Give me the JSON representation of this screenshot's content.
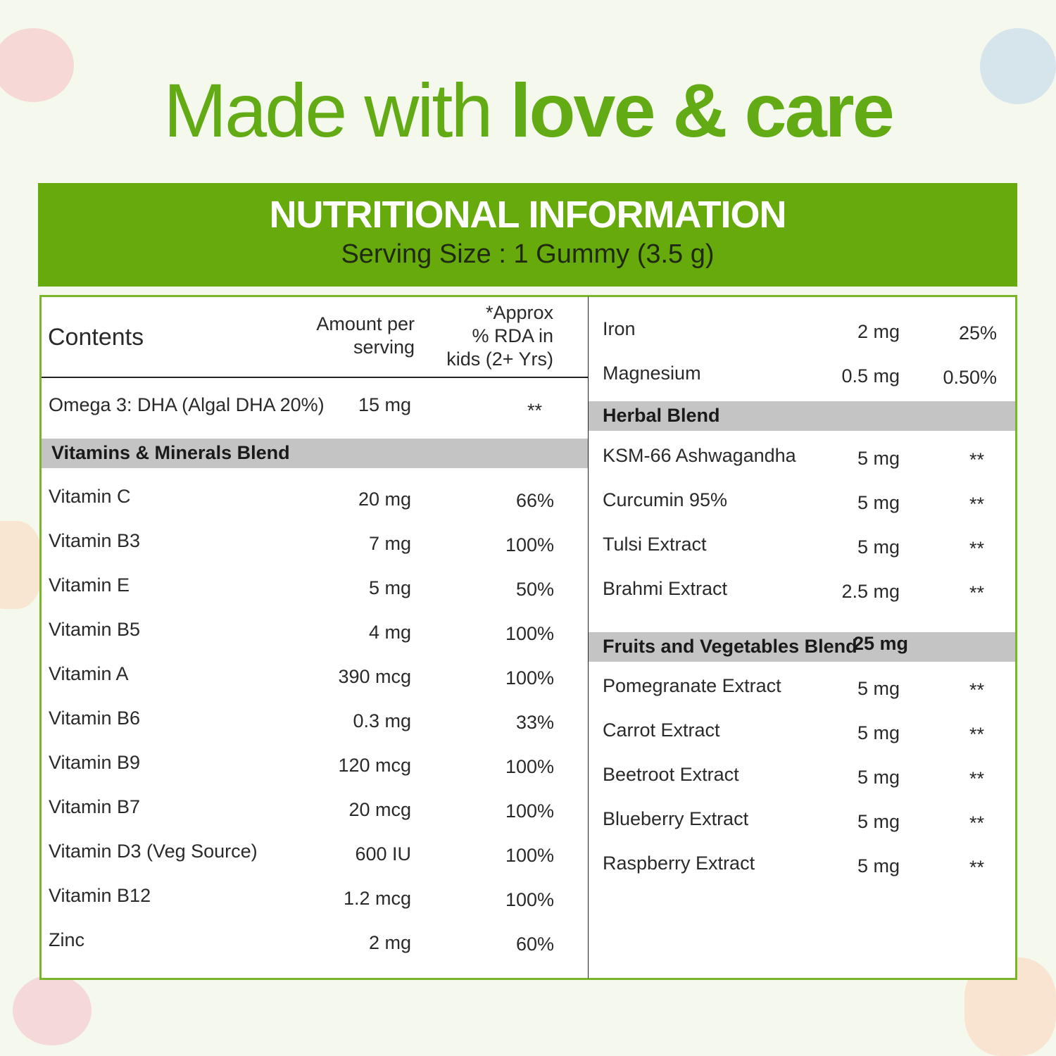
{
  "headline": {
    "light": "Made with ",
    "bold": "love & care"
  },
  "banner": {
    "title": "NUTRITIONAL INFORMATION",
    "subtitle": "Serving Size : 1 Gummy (3.5 g)"
  },
  "headers": {
    "contents": "Contents",
    "amount_line1": "Amount per",
    "amount_line2": "serving",
    "rda_line1": "*Approx",
    "rda_line2": "% RDA in",
    "rda_line3": "kids (2+ Yrs)"
  },
  "left_top": {
    "name": "Omega 3: DHA (Algal DHA 20%)",
    "amount": "15 mg",
    "rda": "**"
  },
  "vitamins_blend": {
    "label": "Vitamins & Minerals Blend",
    "rows": [
      {
        "name": "Vitamin C",
        "amount": "20 mg",
        "rda": "66%"
      },
      {
        "name": "Vitamin B3",
        "amount": "7 mg",
        "rda": "100%"
      },
      {
        "name": "Vitamin E",
        "amount": "5 mg",
        "rda": "50%"
      },
      {
        "name": "Vitamin B5",
        "amount": "4 mg",
        "rda": "100%"
      },
      {
        "name": "Vitamin A",
        "amount": "390 mcg",
        "rda": "100%"
      },
      {
        "name": "Vitamin B6",
        "amount": "0.3 mg",
        "rda": "33%"
      },
      {
        "name": "Vitamin B9",
        "amount": "120 mcg",
        "rda": "100%"
      },
      {
        "name": "Vitamin B7",
        "amount": "20 mcg",
        "rda": "100%"
      },
      {
        "name": "Vitamin D3 (Veg Source)",
        "amount": "600 IU",
        "rda": "100%"
      },
      {
        "name": "Vitamin B12",
        "amount": "1.2 mcg",
        "rda": "100%"
      },
      {
        "name": "Zinc",
        "amount": "2 mg",
        "rda": "60%"
      }
    ]
  },
  "minerals_cont": [
    {
      "name": "Iron",
      "amount": "2 mg",
      "rda": "25%"
    },
    {
      "name": "Magnesium",
      "amount": "0.5 mg",
      "rda": "0.50%"
    }
  ],
  "herbal_blend": {
    "label": "Herbal Blend",
    "rows": [
      {
        "name": "KSM-66 Ashwagandha",
        "amount": "5 mg",
        "rda": "**"
      },
      {
        "name": "Curcumin 95%",
        "amount": "5 mg",
        "rda": "**"
      },
      {
        "name": "Tulsi Extract",
        "amount": "5 mg",
        "rda": "**"
      },
      {
        "name": "Brahmi Extract",
        "amount": "2.5 mg",
        "rda": "**"
      }
    ]
  },
  "fruits_blend": {
    "label": "Fruits and Vegetables Blend",
    "amount": "25 mg",
    "rows": [
      {
        "name": "Pomegranate Extract",
        "amount": "5 mg",
        "rda": "**"
      },
      {
        "name": "Carrot Extract",
        "amount": "5 mg",
        "rda": "**"
      },
      {
        "name": "Beetroot Extract",
        "amount": "5 mg",
        "rda": "**"
      },
      {
        "name": "Blueberry Extract",
        "amount": "5 mg",
        "rda": "**"
      },
      {
        "name": "Raspberry Extract",
        "amount": "5 mg",
        "rda": "**"
      }
    ]
  },
  "colors": {
    "green": "#66aa0c",
    "headline_green": "#62ab14",
    "band_gray": "#c4c4c4",
    "border_green": "#7ab52a"
  }
}
